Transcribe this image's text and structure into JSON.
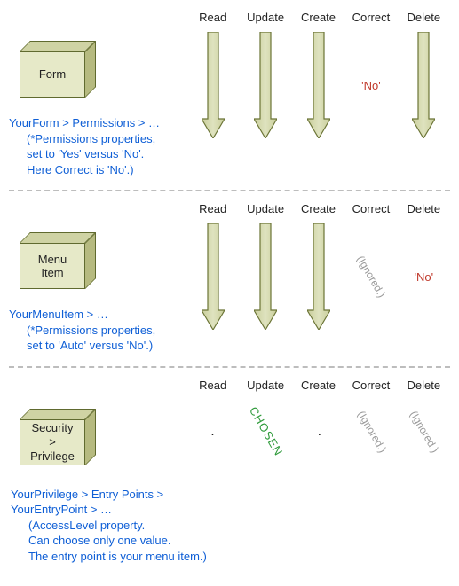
{
  "colors": {
    "box_face": "#e6e9c8",
    "box_top": "#cfd3a4",
    "box_side": "#b6ba80",
    "box_border": "#606a2f",
    "arrow_fill": "#dfe3bf",
    "arrow_stroke": "#6b7436",
    "blue_text": "#0f5fd6",
    "no_text": "#c0392b",
    "ignored_text": "#9a9a9a",
    "chosen_text": "#2e9a3a",
    "divider": "#bdbdbd"
  },
  "columns": [
    "Read",
    "Update",
    "Create",
    "Correct",
    "Delete"
  ],
  "sections": [
    {
      "box_label": "Form",
      "caption_main": "YourForm  >  Permissions  >  …",
      "caption_sub1": "(*Permissions  properties,",
      "caption_sub2": "set to 'Yes' versus 'No'.",
      "caption_sub3": "Here Correct is 'No'.)",
      "cells": [
        {
          "kind": "arrow"
        },
        {
          "kind": "arrow"
        },
        {
          "kind": "arrow"
        },
        {
          "kind": "no",
          "text": "'No'"
        },
        {
          "kind": "arrow"
        }
      ]
    },
    {
      "box_label": "Menu\nItem",
      "caption_main": "YourMenuItem  >  …",
      "caption_sub1": "(*Permissions  properties,",
      "caption_sub2": "set to 'Auto' versus 'No'.)",
      "caption_sub3": "",
      "cells": [
        {
          "kind": "arrow"
        },
        {
          "kind": "arrow"
        },
        {
          "kind": "arrow"
        },
        {
          "kind": "ignored",
          "text": "(Ignored.)"
        },
        {
          "kind": "no",
          "text": "'No'"
        }
      ]
    },
    {
      "box_label": "Security\n>\nPrivilege",
      "caption_main": "YourPrivilege  >  Entry Points  >",
      "caption_sub1": "YourEntryPoint  >  …",
      "caption_sub2": "(AccessLevel  property.",
      "caption_sub3": "Can choose only one value.",
      "caption_sub4": "The entry point is your menu item.)",
      "cells": [
        {
          "kind": "dot",
          "text": "."
        },
        {
          "kind": "chosen",
          "text": "CHOSEN"
        },
        {
          "kind": "dot",
          "text": "."
        },
        {
          "kind": "ignored",
          "text": "(Ignored.)"
        },
        {
          "kind": "ignored",
          "text": "(Ignored.)"
        }
      ]
    }
  ],
  "arrow": {
    "width": 26,
    "height": 120,
    "shaft_w": 12,
    "head_w": 26,
    "head_h": 22,
    "fill": "#dfe3bf",
    "stroke": "#6b7436",
    "stroke_width": 1.2
  }
}
